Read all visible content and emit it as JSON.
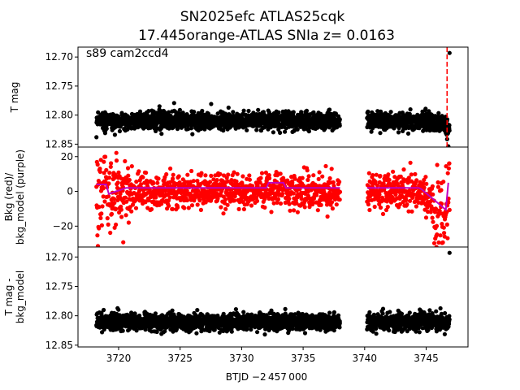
{
  "title_line1": "SN2025efc  ATLAS25cqk",
  "title_line2": "17.445orange-ATLAS SNIa z= 0.0163",
  "annotation": "s89 cam2ccd4",
  "xlabel": "BTJD −2 457 000",
  "colors": {
    "data": "#000000",
    "bkg": "#ff0000",
    "model": "#bf00bf",
    "marker_line": "#ff0000"
  },
  "chart_data": [
    {
      "type": "scatter",
      "name": "T mag",
      "ylabel": "T mag",
      "xlim": [
        3716.7,
        3748.4
      ],
      "ylim": [
        12.855,
        12.683
      ],
      "yticks": [
        12.7,
        12.75,
        12.8,
        12.85
      ],
      "ytick_labels": [
        "12.70",
        "12.75",
        "12.80",
        "12.85"
      ],
      "segments": [
        [
          3718.2,
          3738.0
        ],
        [
          3740.2,
          3746.9
        ]
      ],
      "center": 12.81,
      "spread": 0.016,
      "outliers": [
        {
          "x": 3746.9,
          "y": 12.693
        }
      ],
      "event_line_x": 3746.7
    },
    {
      "type": "scatter",
      "name": "Background",
      "ylabel": "Bkg (red)/\nbkg_model (purple)",
      "ylabel_lines": [
        "Bkg (red)/",
        "bkg_model (purple)"
      ],
      "xlim": [
        3716.7,
        3748.4
      ],
      "ylim": [
        -32,
        25.5
      ],
      "yticks": [
        20,
        0,
        -20
      ],
      "ytick_labels": [
        "20",
        "0",
        "−20"
      ],
      "series": [
        {
          "name": "Bkg",
          "color": "red",
          "y_range": [
            -30,
            25
          ]
        },
        {
          "name": "bkg_model",
          "color": "purple",
          "y_range": [
            -12,
            5
          ]
        }
      ]
    },
    {
      "type": "scatter",
      "name": "T mag - bkg_model",
      "ylabel": "T mag -\nbkg_model",
      "ylabel_lines": [
        "T mag -",
        "bkg_model"
      ],
      "xlim": [
        3716.7,
        3748.4
      ],
      "ylim": [
        12.853,
        12.683
      ],
      "yticks": [
        12.7,
        12.75,
        12.8,
        12.85
      ],
      "ytick_labels": [
        "12.70",
        "12.75",
        "12.80",
        "12.85"
      ],
      "xticks": [
        3720,
        3725,
        3730,
        3735,
        3740,
        3745
      ],
      "xtick_labels": [
        "3720",
        "3725",
        "3730",
        "3735",
        "3740",
        "3745"
      ],
      "segments": [
        [
          3718.2,
          3738.0
        ],
        [
          3740.2,
          3746.9
        ]
      ],
      "center": 12.81,
      "spread": 0.016,
      "outliers": [
        {
          "x": 3746.9,
          "y": 12.693
        }
      ]
    }
  ]
}
